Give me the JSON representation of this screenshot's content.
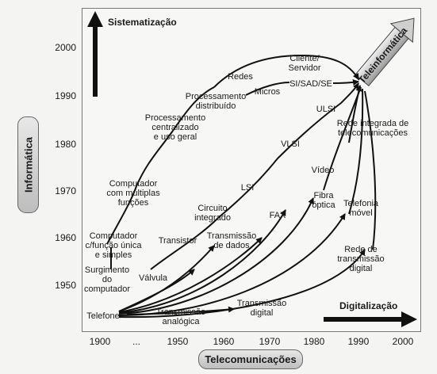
{
  "axes": {
    "y_label": "Informática",
    "x_label": "Telecomunicações",
    "y_ticks": [
      "2000",
      "1990",
      "1980",
      "1970",
      "1960",
      "1950"
    ],
    "x_ticks": [
      "1900",
      "...",
      "1950",
      "1960",
      "1970",
      "1980",
      "1990",
      "2000"
    ]
  },
  "arrows": {
    "sistematizacao": "Sistematização",
    "digitalizacao": "Digitalização",
    "teleinformatica": "Teleinformática"
  },
  "labels": {
    "cliente": [
      "Cliente/",
      "Servidor"
    ],
    "redes": "Redes",
    "si_sad": "SI/SAD/SE",
    "micros": "Micros",
    "proc_dist": [
      "Processamento",
      "distribuído"
    ],
    "proc_cent": [
      "Processamento",
      "centralizado",
      "e uso geral"
    ],
    "ulsi": "ULSI",
    "rede_integrada": [
      "Rede integrada de",
      "telecomunicações"
    ],
    "vlsi": "VLSI",
    "comp_multi": [
      "Computador",
      "com múltiplas",
      "funções"
    ],
    "lsi": "LSI",
    "video": "Vídeo",
    "fibra": [
      "Fibra",
      "óptica"
    ],
    "telefonia": [
      "Telefonia",
      "móvel"
    ],
    "circuito": [
      "Circuito",
      "integrado"
    ],
    "fax": "FAX",
    "comp_unica": [
      "Computador",
      "c/função única",
      "e simples"
    ],
    "transistor": "Transistor",
    "trans_dados": [
      "Transmissão",
      "de dados"
    ],
    "rede_digital": [
      "Rede de",
      "transmissão",
      "digital"
    ],
    "surgimento": [
      "Surgimento",
      "do",
      "computador"
    ],
    "valvula": "Válvula",
    "telefone": "Telefone",
    "trans_analog": [
      "Transmissão",
      "analógica"
    ],
    "trans_digital": [
      "Transmissão",
      "digital"
    ]
  }
}
